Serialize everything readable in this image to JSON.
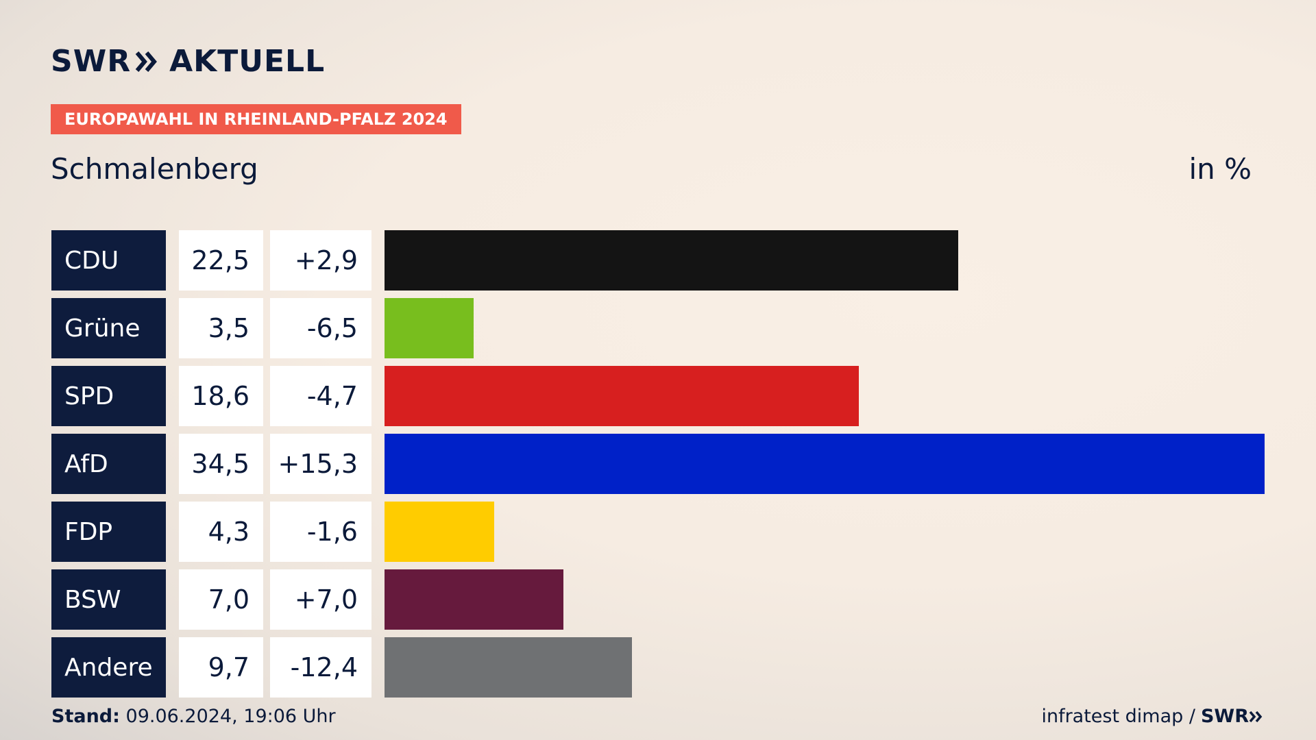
{
  "header": {
    "brand_name": "SWR",
    "brand_product": "AKTUELL",
    "badge": "EUROPAWAHL IN RHEINLAND-PFALZ 2024",
    "location": "Schmalenberg",
    "unit": "in %"
  },
  "chart_data": {
    "type": "bar",
    "orientation": "horizontal",
    "xlim": [
      0,
      34.5
    ],
    "categories": [
      "CDU",
      "Grüne",
      "SPD",
      "AfD",
      "FDP",
      "BSW",
      "Andere"
    ],
    "values": [
      22.5,
      3.5,
      18.6,
      34.5,
      4.3,
      7.0,
      9.7
    ],
    "value_labels": [
      "22,5",
      "3,5",
      "18,6",
      "34,5",
      "4,3",
      "7,0",
      "9,7"
    ],
    "change_labels": [
      "+2,9",
      "-6,5",
      "-4,7",
      "+15,3",
      "-1,6",
      "+7,0",
      "-12,4"
    ],
    "colors": [
      "#141414",
      "#78be1e",
      "#d71f1f",
      "#0021c8",
      "#ffcc00",
      "#661a3d",
      "#6f7173"
    ]
  },
  "footer": {
    "stand_label": "Stand:",
    "stand_value": "09.06.2024, 19:06 Uhr",
    "source": "infratest dimap /",
    "source_brand": "SWR"
  },
  "colors": {
    "navy": "#0e1c3d",
    "badge": "#f05a4a"
  }
}
